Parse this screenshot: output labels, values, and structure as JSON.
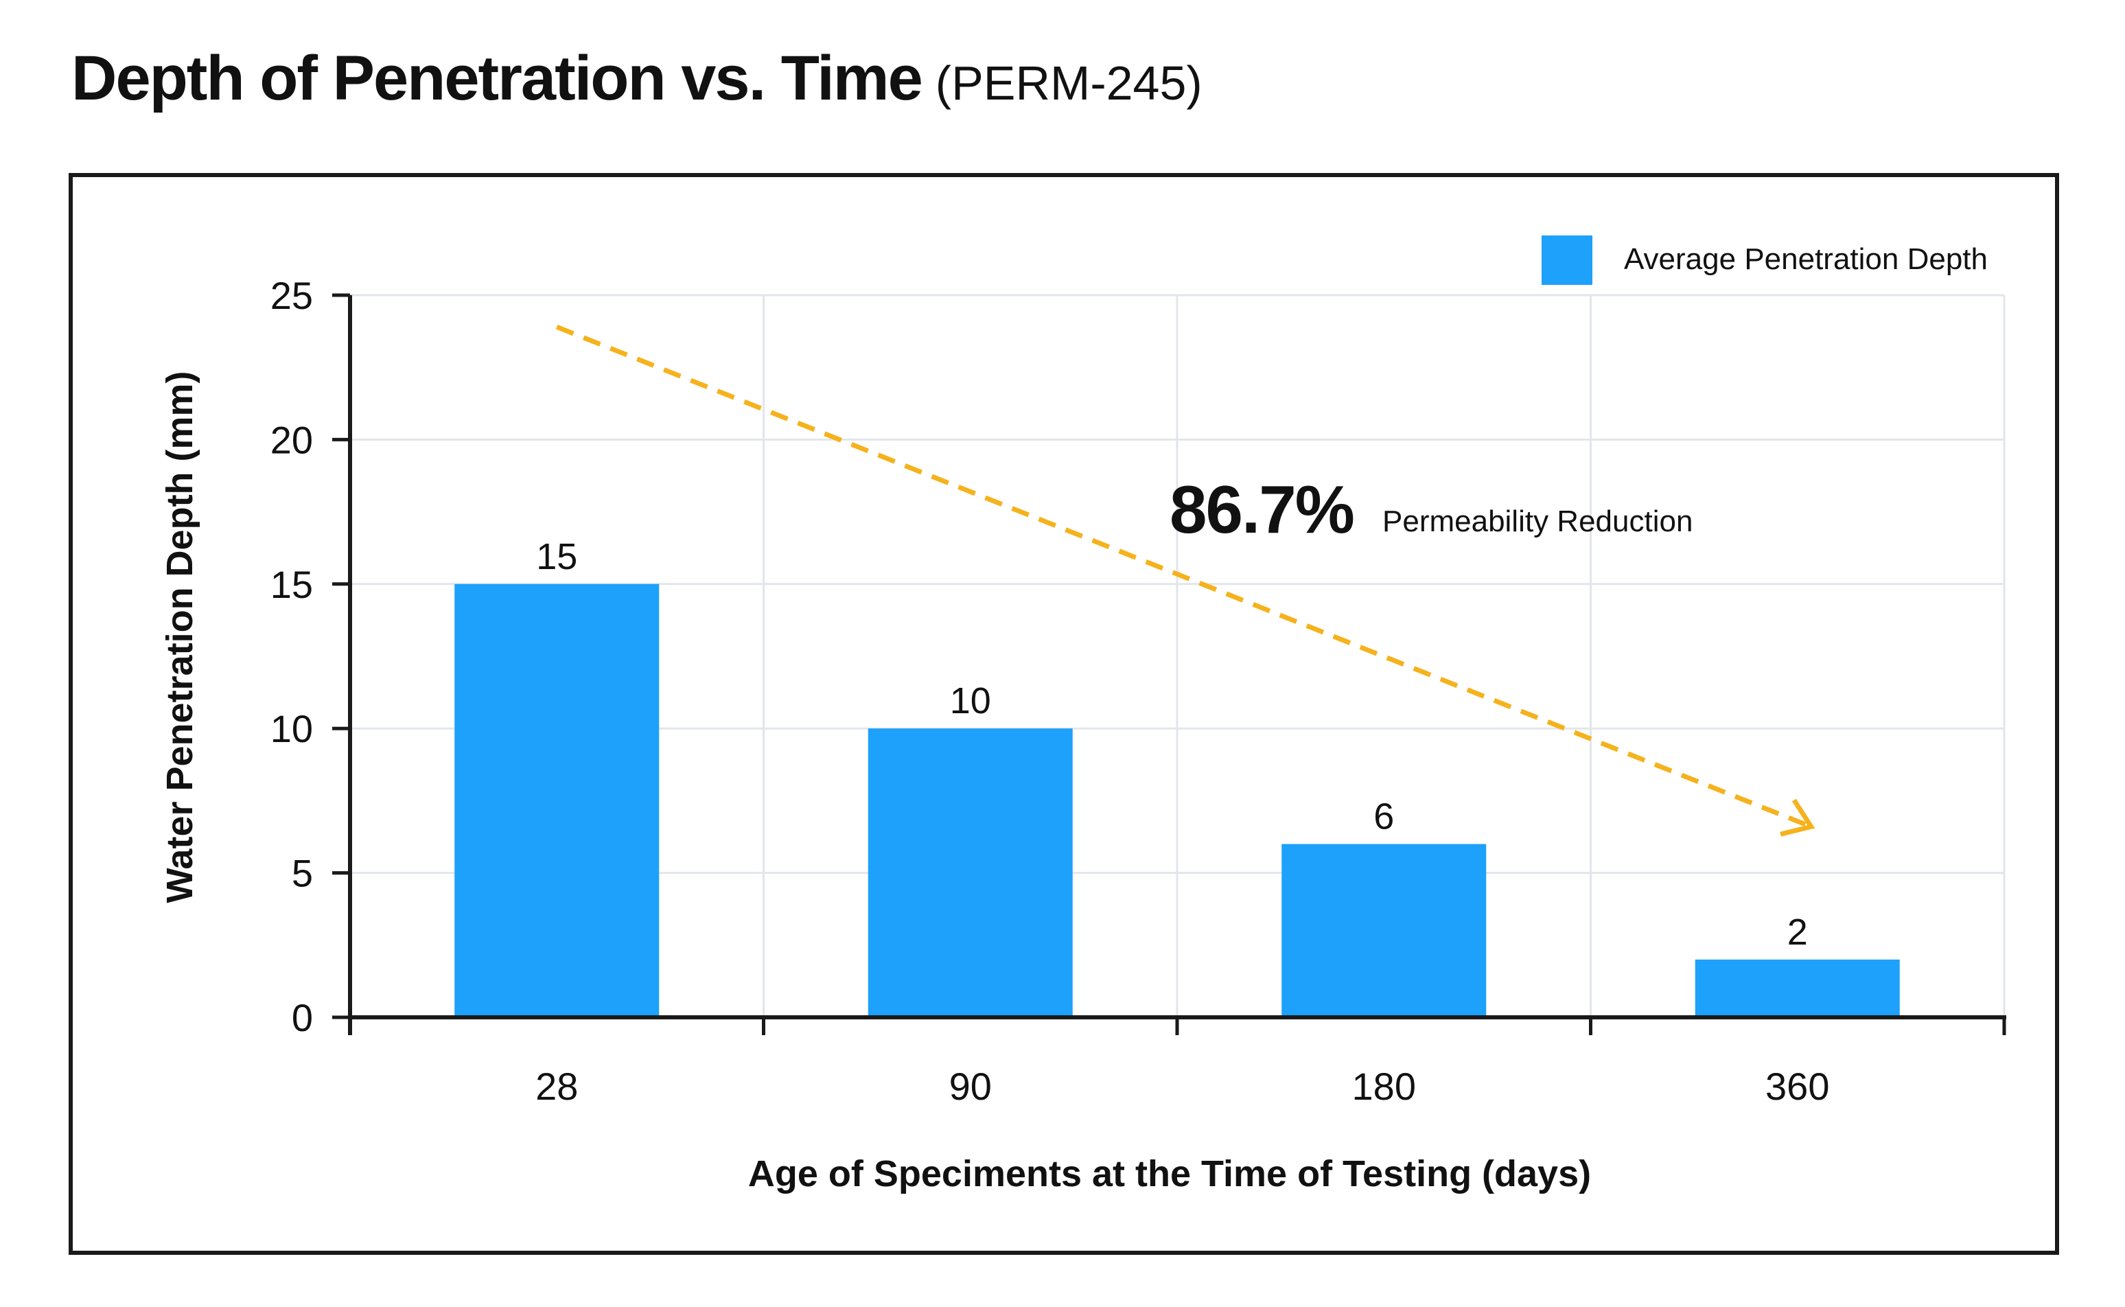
{
  "header": {
    "title": "Depth of Penetration vs. Time",
    "subtitle": "(PERM-245)"
  },
  "colors": {
    "bar": "#1da1fb",
    "trend": "#f5b21c",
    "grid": "#e2e6ea",
    "axis": "#1a1a1a"
  },
  "annotation": {
    "value": "86.7%",
    "label": "Permeability Reduction"
  },
  "chart_data": {
    "type": "bar",
    "title": "Depth of Penetration vs. Time (PERM-245)",
    "xlabel": "Age of Speciments at the Time of Testing (days)",
    "ylabel": "Water Penetration Depth (mm)",
    "categories": [
      "28",
      "90",
      "180",
      "360"
    ],
    "series": [
      {
        "name": "Average Penetration Depth",
        "values": [
          15,
          10,
          6,
          2
        ]
      }
    ],
    "value_labels": [
      "15",
      "10",
      "6",
      "2"
    ],
    "ylim": [
      0,
      25
    ],
    "yticks": [
      0,
      5,
      10,
      15,
      20,
      25
    ],
    "grid": true,
    "legend": "top-right",
    "trend": {
      "from_value": 23.9,
      "to_value": 6.6,
      "style": "dashed-arrow"
    }
  }
}
